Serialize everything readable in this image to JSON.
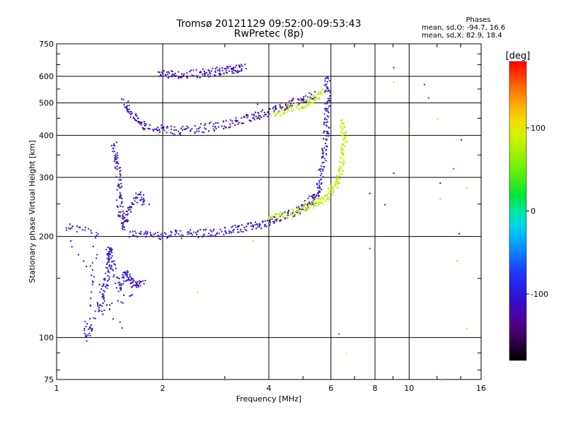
{
  "header": {
    "title_line1": "Tromsø 20121129 09:52:00-09:53:43",
    "title_line2": "RwPretec (8p)"
  },
  "phases_box": {
    "heading": "Phases",
    "line_o": "mean, sd,O: -94.7, 16.6",
    "line_x": "mean, sd,X:  82.9, 18.4"
  },
  "colorbar": {
    "unit_label": "[deg]",
    "tick_labels": [
      "100",
      "0",
      "-100"
    ],
    "ticks": [
      100,
      0,
      -100
    ],
    "range": [
      -180,
      180
    ]
  },
  "chart_data": {
    "type": "scatter",
    "title": "Tromsø 20121129 09:52:00-09:53:43",
    "subtitle": "RwPretec (8p)",
    "xlabel": "Frequency [MHz]",
    "ylabel": "Stationary phase Virtual Height [km]",
    "x_scale": "log",
    "y_scale": "log",
    "xlim": [
      1,
      16
    ],
    "ylim": [
      75,
      750
    ],
    "x_ticks": [
      1,
      2,
      4,
      6,
      8,
      10,
      16
    ],
    "x_tick_labels": [
      "1",
      "2",
      "4",
      "6",
      "8",
      "10",
      "16"
    ],
    "x_grid": [
      2,
      4,
      6,
      8,
      10
    ],
    "y_ticks": [
      75,
      100,
      200,
      300,
      400,
      500,
      600,
      750
    ],
    "y_tick_labels": [
      "75",
      "100",
      "200",
      "300",
      "400",
      "500",
      "600",
      "750"
    ],
    "y_grid": [
      100,
      200,
      300,
      400,
      500,
      600
    ],
    "grid": true,
    "color_encoding": "phase [deg]",
    "series": [
      {
        "trace": "F-layer X-mode lower trace",
        "points": [
          [
            1.6,
            205
          ],
          [
            1.8,
            203
          ],
          [
            2.0,
            203
          ],
          [
            2.2,
            204
          ],
          [
            2.5,
            205
          ],
          [
            2.8,
            206
          ],
          [
            3.1,
            209
          ],
          [
            3.4,
            213
          ],
          [
            3.7,
            218
          ],
          [
            4.0,
            222
          ],
          [
            4.3,
            229
          ],
          [
            4.7,
            238
          ],
          [
            5.0,
            246
          ],
          [
            5.3,
            258
          ],
          [
            5.5,
            272
          ],
          [
            5.6,
            290
          ]
        ],
        "phase": -110
      },
      {
        "trace": "F-layer O-mode lower trace",
        "points": [
          [
            4.0,
            228
          ],
          [
            4.3,
            232
          ],
          [
            4.7,
            237
          ],
          [
            5.0,
            244
          ],
          [
            5.3,
            250
          ],
          [
            5.6,
            258
          ],
          [
            5.9,
            268
          ],
          [
            6.1,
            282
          ],
          [
            6.3,
            300
          ],
          [
            6.4,
            330
          ],
          [
            6.5,
            370
          ],
          [
            6.5,
            410
          ],
          [
            6.4,
            450
          ]
        ],
        "phase": 80
      },
      {
        "trace": "F-layer X-mode rising cusp",
        "points": [
          [
            5.6,
            300
          ],
          [
            5.7,
            340
          ],
          [
            5.75,
            380
          ],
          [
            5.8,
            430
          ],
          [
            5.82,
            480
          ],
          [
            5.83,
            540
          ],
          [
            5.85,
            600
          ]
        ],
        "phase": -100
      },
      {
        "trace": "Upper X-mode trace",
        "points": [
          [
            1.55,
            510
          ],
          [
            1.6,
            470
          ],
          [
            1.7,
            440
          ],
          [
            1.8,
            425
          ],
          [
            2.0,
            418
          ],
          [
            2.2,
            415
          ],
          [
            2.5,
            420
          ],
          [
            2.8,
            428
          ],
          [
            3.1,
            436
          ],
          [
            3.4,
            448
          ],
          [
            3.7,
            462
          ],
          [
            4.0,
            475
          ],
          [
            4.3,
            488
          ],
          [
            4.6,
            502
          ],
          [
            5.0,
            518
          ],
          [
            5.4,
            535
          ]
        ],
        "phase": -115
      },
      {
        "trace": "Upper O-mode trace",
        "points": [
          [
            4.1,
            465
          ],
          [
            4.4,
            478
          ],
          [
            4.8,
            492
          ],
          [
            5.1,
            505
          ],
          [
            5.4,
            520
          ],
          [
            5.7,
            540
          ]
        ],
        "phase": 85
      },
      {
        "trace": "Low-frequency vertical band",
        "points": [
          [
            1.45,
            380
          ],
          [
            1.47,
            340
          ],
          [
            1.5,
            300
          ],
          [
            1.5,
            260
          ],
          [
            1.52,
            230
          ],
          [
            1.55,
            215
          ],
          [
            1.6,
            240
          ],
          [
            1.7,
            270
          ],
          [
            1.8,
            250
          ]
        ],
        "phase": -110
      },
      {
        "trace": "Sporadic low echoes",
        "points": [
          [
            1.3,
            120
          ],
          [
            1.35,
            135
          ],
          [
            1.38,
            150
          ],
          [
            1.4,
            165
          ],
          [
            1.4,
            185
          ],
          [
            1.42,
            175
          ],
          [
            1.5,
            140
          ],
          [
            1.55,
            155
          ],
          [
            1.6,
            150
          ],
          [
            1.65,
            145
          ],
          [
            1.75,
            145
          ],
          [
            1.25,
            110
          ],
          [
            1.2,
            100
          ],
          [
            1.3,
            205
          ],
          [
            1.05,
            215
          ],
          [
            1.55,
            100
          ]
        ],
        "phase": -105
      },
      {
        "trace": "Multi-hop echo",
        "points": [
          [
            1.95,
            612
          ],
          [
            2.1,
            610
          ],
          [
            2.3,
            612
          ],
          [
            2.6,
            615
          ],
          [
            2.8,
            620
          ],
          [
            3.0,
            626
          ],
          [
            3.2,
            634
          ],
          [
            3.4,
            640
          ]
        ],
        "phase": -115
      }
    ],
    "scattered_points": [
      {
        "x": 9.0,
        "y": 640,
        "phase": -100
      },
      {
        "x": 9.0,
        "y": 580,
        "phase": 90
      },
      {
        "x": 11.0,
        "y": 570,
        "phase": -90
      },
      {
        "x": 11.3,
        "y": 520,
        "phase": -80
      },
      {
        "x": 10.0,
        "y": 420,
        "phase": 80
      },
      {
        "x": 12.0,
        "y": 450,
        "phase": 80
      },
      {
        "x": 14.0,
        "y": 390,
        "phase": -120
      },
      {
        "x": 9.0,
        "y": 310,
        "phase": -110
      },
      {
        "x": 7.7,
        "y": 270,
        "phase": -100
      },
      {
        "x": 12.2,
        "y": 290,
        "phase": -120
      },
      {
        "x": 12.2,
        "y": 260,
        "phase": 60
      },
      {
        "x": 13.3,
        "y": 320,
        "phase": 160
      },
      {
        "x": 14.5,
        "y": 280,
        "phase": 120
      },
      {
        "x": 13.8,
        "y": 205,
        "phase": -130
      },
      {
        "x": 13.6,
        "y": 170,
        "phase": 70
      },
      {
        "x": 7.7,
        "y": 185,
        "phase": -60
      },
      {
        "x": 6.3,
        "y": 103,
        "phase": -60
      },
      {
        "x": 6.6,
        "y": 90,
        "phase": 90
      },
      {
        "x": 14.5,
        "y": 107,
        "phase": 80
      },
      {
        "x": 12.3,
        "y": 75,
        "phase": 130
      },
      {
        "x": 2.5,
        "y": 137,
        "phase": 120
      },
      {
        "x": 3.6,
        "y": 195,
        "phase": 70
      },
      {
        "x": 3.7,
        "y": 498,
        "phase": -100
      },
      {
        "x": 3.3,
        "y": 643,
        "phase": -100
      },
      {
        "x": 8.5,
        "y": 250,
        "phase": -80
      },
      {
        "x": 3.0,
        "y": 75,
        "phase": 60
      }
    ]
  }
}
